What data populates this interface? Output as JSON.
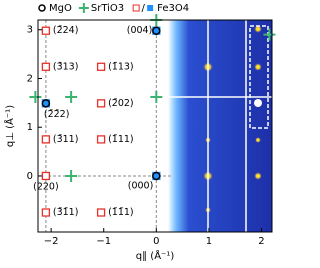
{
  "chart_data": {
    "type": "scatter",
    "x_label": "q∥ (Å⁻¹)",
    "y_label": "q⊥ (Å⁻¹)",
    "xlim": [
      -2.25,
      2.2
    ],
    "ylim": [
      -1.15,
      3.2
    ],
    "xticks": [
      {
        "value": -2,
        "label": "−2"
      },
      {
        "value": -1,
        "label": "−1"
      },
      0,
      1,
      2
    ],
    "yticks": [
      0,
      1,
      2,
      3
    ],
    "legend_position": "top",
    "series": [
      {
        "name": "MgO",
        "color": "#000000",
        "marker": "circle",
        "x": [
          0,
          0,
          -2.1
        ],
        "y": [
          0,
          2.98,
          1.49
        ],
        "labels": [
          "(000)",
          "(004)",
          "(2̄2̄2)"
        ]
      },
      {
        "name": "SrTiO3",
        "color": "#3cb371",
        "marker": "plus",
        "x": [
          -2.3,
          -1.62,
          0,
          -1.62,
          0,
          2.15
        ],
        "y": [
          1.62,
          1.62,
          1.62,
          0,
          3.2,
          2.9
        ]
      },
      {
        "name": "Fe3O4",
        "color": "#e8302a",
        "fill_color": "#1e90ff",
        "marker": "square",
        "x": [
          -2.1,
          -2.1,
          -1.05,
          -1.05,
          -2.1,
          -1.05,
          -2.1,
          -2.1,
          -1.05,
          0,
          0,
          -2.1
        ],
        "y": [
          2.98,
          2.24,
          2.24,
          1.49,
          0.75,
          0.75,
          0,
          -0.75,
          -0.75,
          0,
          2.98,
          1.49
        ],
        "filled": [
          false,
          false,
          false,
          false,
          false,
          false,
          false,
          false,
          false,
          true,
          true,
          true
        ],
        "labels": [
          "(2̄24)",
          "(3̄13)",
          "(1̄13)",
          "(2̄02)",
          "(3̄11)",
          "(1̄11)",
          "(220)",
          "(3̄1̄1)",
          "(1̄1̄1)",
          null,
          null,
          null
        ]
      }
    ],
    "legend_separator": "/"
  }
}
